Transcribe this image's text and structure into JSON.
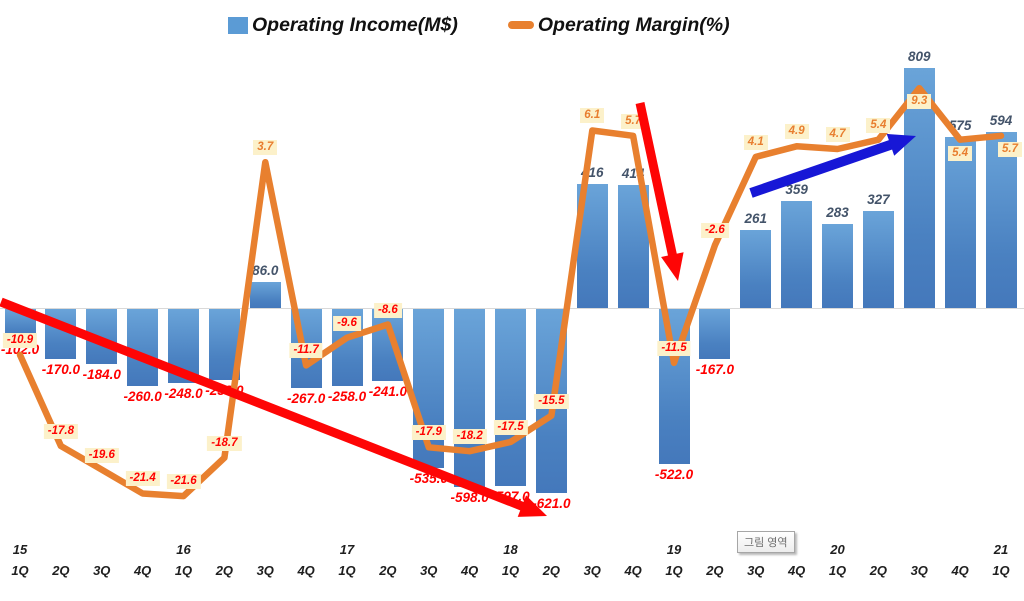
{
  "legend": {
    "items": [
      {
        "label": "Operating Income(M$)",
        "marker": "bar-swatch",
        "color": "#5B9BD5"
      },
      {
        "label": "Operating Margin(%)",
        "marker": "line-swatch",
        "color": "#E8802F"
      }
    ]
  },
  "plot_area_tooltip": "그림 영역",
  "chart_data": {
    "type": "combo-bar-line",
    "title": "",
    "legend_position": "top",
    "grid": "off",
    "axes": {
      "value_axis_visible": false,
      "percent_axis_visible": false,
      "income_axis_approx_range": [
        -700,
        1030
      ],
      "margin_axis_approx_range": [
        -22.5,
        9.5
      ]
    },
    "categories": [
      {
        "year": "15",
        "q": "1Q"
      },
      {
        "year": "",
        "q": "2Q"
      },
      {
        "year": "",
        "q": "3Q"
      },
      {
        "year": "",
        "q": "4Q"
      },
      {
        "year": "16",
        "q": "1Q"
      },
      {
        "year": "",
        "q": "2Q"
      },
      {
        "year": "",
        "q": "3Q"
      },
      {
        "year": "",
        "q": "4Q"
      },
      {
        "year": "17",
        "q": "1Q"
      },
      {
        "year": "",
        "q": "2Q"
      },
      {
        "year": "",
        "q": "3Q"
      },
      {
        "year": "",
        "q": "4Q"
      },
      {
        "year": "18",
        "q": "1Q"
      },
      {
        "year": "",
        "q": "2Q"
      },
      {
        "year": "",
        "q": "3Q"
      },
      {
        "year": "",
        "q": "4Q"
      },
      {
        "year": "19",
        "q": "1Q"
      },
      {
        "year": "",
        "q": "2Q"
      },
      {
        "year": "",
        "q": "3Q"
      },
      {
        "year": "",
        "q": "4Q"
      },
      {
        "year": "20",
        "q": "1Q"
      },
      {
        "year": "",
        "q": "2Q"
      },
      {
        "year": "",
        "q": "3Q"
      },
      {
        "year": "",
        "q": "4Q"
      },
      {
        "year": "21",
        "q": "1Q"
      }
    ],
    "series": [
      {
        "name": "Operating Income(M$)",
        "type": "bar",
        "color": "#5B9BD5",
        "values": [
          -102,
          -170,
          -184,
          -260,
          -248,
          -238,
          86,
          -267,
          -258,
          -241,
          -535,
          -598,
          -597,
          -621,
          416,
          414,
          -522,
          -167,
          261,
          359,
          283,
          327,
          809,
          575,
          594
        ],
        "value_labels": [
          "-102.0",
          "-170.0",
          "-184.0",
          "-260.0",
          "-248.0",
          "-238.0",
          "86.0",
          "-267.0",
          "-258.0",
          "-241.0",
          "-535.0",
          "-598.0",
          "-597.0",
          "-621.0",
          "416",
          "414",
          "-522.0",
          "-167.0",
          "261",
          "359",
          "283",
          "327",
          "809",
          "575",
          "594"
        ],
        "label_color_positive": "#44546A",
        "label_color_negative": "#FF0000"
      },
      {
        "name": "Operating Margin(%)",
        "type": "line",
        "color": "#E8802F",
        "values": [
          -10.9,
          -17.8,
          -19.6,
          -21.4,
          -21.6,
          -18.7,
          3.7,
          -11.7,
          -9.6,
          -8.6,
          -17.9,
          -18.2,
          -17.5,
          -15.5,
          6.1,
          5.7,
          -11.5,
          -2.6,
          4.1,
          4.9,
          4.7,
          5.4,
          9.3,
          5.4,
          5.7
        ],
        "value_labels": [
          "-10.9",
          "-17.8",
          "-19.6",
          "-21.4",
          "-21.6",
          "-18.7",
          "3.7",
          "-11.7",
          "-9.6",
          "-8.6",
          "-17.9",
          "-18.2",
          "-17.5",
          "-15.5",
          "6.1",
          "5.7",
          "-11.5",
          "-2.6",
          "4.1",
          "4.9",
          "4.7",
          "5.4",
          "9.3",
          "5.4",
          "5.7"
        ],
        "label_sides": [
          "above",
          "above",
          "above",
          "above",
          "above",
          "above",
          "above",
          "above",
          "above",
          "above",
          "above",
          "above",
          "above",
          "above",
          "above",
          "above",
          "above",
          "above",
          "above",
          "above",
          "above",
          "above",
          "below",
          "below",
          "below"
        ],
        "label_bg": "#FCF1CA",
        "label_color_positive": "#E87E2F",
        "label_color_negative": "#FF0000"
      }
    ],
    "annotations": [
      {
        "id": "long-downtrend-arrow",
        "type": "arrow",
        "color": "#FE0505",
        "stroke_width": 9,
        "from": [
          1,
          302
        ],
        "to": [
          547,
          516
        ]
      },
      {
        "id": "2019-drop-arrow",
        "type": "arrow",
        "color": "#FE0505",
        "stroke_width": 9,
        "from": [
          640,
          103
        ],
        "to": [
          678,
          281
        ]
      },
      {
        "id": "recovery-uptrend-arrow",
        "type": "arrow",
        "color": "#1717D6",
        "stroke_width": 10,
        "from": [
          751,
          193
        ],
        "to": [
          916,
          136
        ]
      }
    ]
  }
}
